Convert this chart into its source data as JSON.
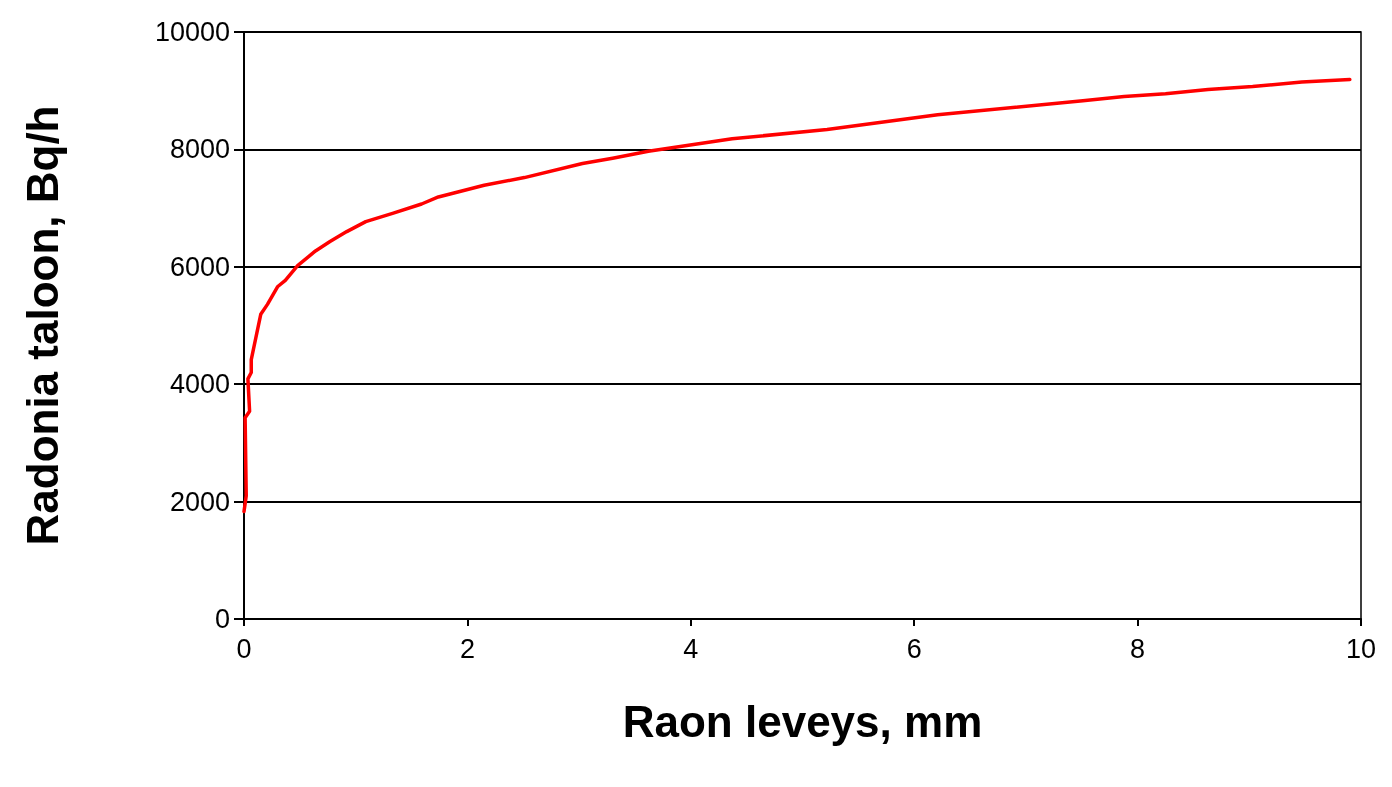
{
  "chart_data": {
    "type": "line",
    "xlabel": "Raon leveys, mm",
    "ylabel": "Radonia taloon, Bq/h",
    "xlim": [
      0,
      10
    ],
    "xticks": [
      0,
      2,
      4,
      6,
      8,
      10
    ],
    "ylim": [
      0,
      10000
    ],
    "yticks": [
      0,
      2000,
      4000,
      6000,
      8000,
      10000
    ],
    "grid": "y",
    "marker": "none",
    "line_style": "solid",
    "series": [
      {
        "color": "#ff0000",
        "x": [
          0,
          0.02,
          0.01,
          0.05,
          0.035,
          0.065,
          0.065,
          0.15,
          0.21,
          0.3,
          0.37,
          0.48,
          0.64,
          0.77,
          0.92,
          1.09,
          1.33,
          1.59,
          1.74,
          2.15,
          2.51,
          3.03,
          3.3,
          3.62,
          4.37,
          5.22,
          6.21,
          7.51,
          7.88,
          8.25,
          8.63,
          9.03,
          9.47,
          9.9
        ],
        "values": [
          1830,
          2100,
          3430,
          3540,
          4090,
          4200,
          4420,
          5190,
          5360,
          5660,
          5770,
          6020,
          6270,
          6430,
          6600,
          6770,
          6910,
          7070,
          7190,
          7390,
          7520,
          7760,
          7850,
          7970,
          8180,
          8340,
          8590,
          8830,
          8900,
          8950,
          9020,
          9070,
          9150,
          9190
        ]
      }
    ]
  }
}
